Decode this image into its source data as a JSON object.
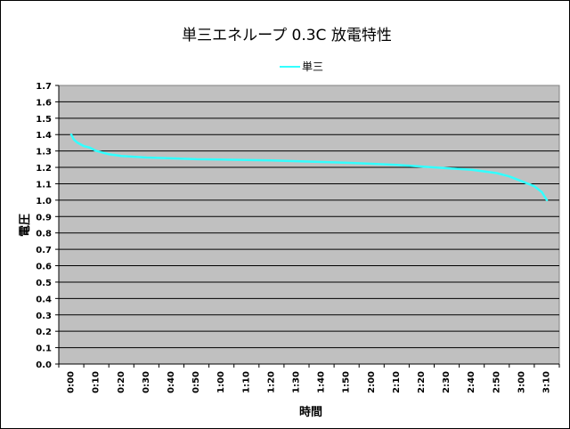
{
  "chart_data": {
    "type": "line",
    "title": "単三エネループ 0.3C 放電特性",
    "xlabel": "時間",
    "ylabel": "電圧",
    "ylim": [
      0.0,
      1.7
    ],
    "ytick_step": 0.1,
    "grid": true,
    "legend_position": "top",
    "plot_background": "#c0c0c0",
    "categories": [
      "0:00",
      "0:10",
      "0:20",
      "0:30",
      "0:40",
      "0:50",
      "1:00",
      "1:10",
      "1:20",
      "1:30",
      "1:40",
      "1:50",
      "2:00",
      "2:10",
      "2:20",
      "2:30",
      "2:40",
      "2:50",
      "3:00",
      "3:10"
    ],
    "series": [
      {
        "name": "単三",
        "color": "#33ffff",
        "points": [
          [
            0,
            1.4
          ],
          [
            0.1,
            1.37
          ],
          [
            0.25,
            1.35
          ],
          [
            0.5,
            1.33
          ],
          [
            0.75,
            1.32
          ],
          [
            1,
            1.3
          ],
          [
            1.5,
            1.28
          ],
          [
            2,
            1.27
          ],
          [
            3,
            1.26
          ],
          [
            4,
            1.255
          ],
          [
            5,
            1.25
          ],
          [
            6,
            1.248
          ],
          [
            7,
            1.245
          ],
          [
            8,
            1.242
          ],
          [
            9,
            1.238
          ],
          [
            10,
            1.233
          ],
          [
            11,
            1.228
          ],
          [
            12,
            1.222
          ],
          [
            13,
            1.215
          ],
          [
            14,
            1.205
          ],
          [
            15,
            1.195
          ],
          [
            16,
            1.185
          ],
          [
            17,
            1.165
          ],
          [
            17.5,
            1.145
          ],
          [
            18,
            1.115
          ],
          [
            18.5,
            1.085
          ],
          [
            18.8,
            1.05
          ],
          [
            19,
            1.0
          ]
        ]
      }
    ]
  }
}
